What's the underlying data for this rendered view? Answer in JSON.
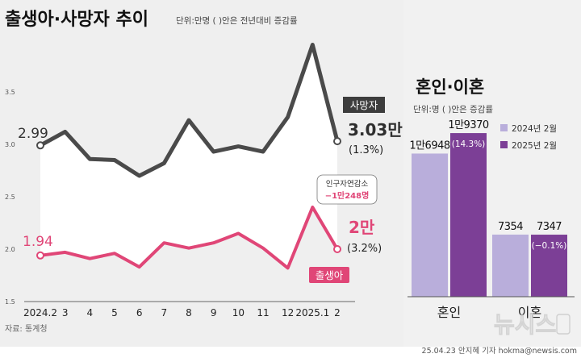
{
  "header": {
    "title": "출생아·사망자 추이",
    "unit": "단위:만명 ( )안은 전년대비 증감률"
  },
  "source": "자료: 통계청",
  "credit": "25.04.23 안지혜 기자 hokma@newsis.com",
  "watermark": "뉴시스",
  "colors": {
    "deaths": "#4a4a4a",
    "births": "#e04677",
    "bar_2024": "#b9aedb",
    "bar_2025": "#7c3f96",
    "left_bg": "#efefef",
    "area_bg": "#ffffff",
    "right_bg": "#f1f1f1"
  },
  "chart_data": [
    {
      "type": "line",
      "title": "출생아·사망자 추이",
      "subtitle": "단위:만명 ( )안은 전년대비 증감률",
      "categories": [
        "2024.2",
        "3",
        "4",
        "5",
        "6",
        "7",
        "8",
        "9",
        "10",
        "11",
        "12",
        "2025.1",
        "2"
      ],
      "yticks": [
        "1.5",
        "2.0",
        "2.5",
        "3.0",
        "3.5"
      ],
      "ylim": [
        1.5,
        4.0
      ],
      "series": [
        {
          "name": "사망자",
          "values": [
            2.99,
            3.12,
            2.86,
            2.85,
            2.7,
            2.82,
            3.23,
            2.93,
            2.98,
            2.93,
            3.26,
            3.95,
            3.03
          ],
          "start_label": "2.99",
          "end_label": "3.03만",
          "end_change": "(1.3%)"
        },
        {
          "name": "출생아",
          "values": [
            1.94,
            1.97,
            1.91,
            1.96,
            1.83,
            2.06,
            2.01,
            2.06,
            2.15,
            2.01,
            1.82,
            2.4,
            2.0
          ],
          "start_label": "1.94",
          "end_label": "2만",
          "end_change": "(3.2%)"
        }
      ],
      "annotation": {
        "label": "인구자연감소",
        "value": "−1만248명"
      }
    },
    {
      "type": "bar",
      "title": "혼인·이혼",
      "subtitle": "단위:명 ( )안은 증감률",
      "categories": [
        "혼인",
        "이혼"
      ],
      "legend": [
        "2024년 2월",
        "2025년 2월"
      ],
      "series": [
        {
          "name": "2024년 2월",
          "values": [
            16948,
            7354
          ],
          "labels": [
            "1만6948",
            "7354"
          ]
        },
        {
          "name": "2025년 2월",
          "values": [
            19370,
            7347
          ],
          "labels": [
            "1만9370",
            "7347"
          ],
          "changes": [
            "(14.3%)",
            "(−0.1%)"
          ]
        }
      ],
      "ylim": [
        0,
        21000
      ]
    }
  ]
}
